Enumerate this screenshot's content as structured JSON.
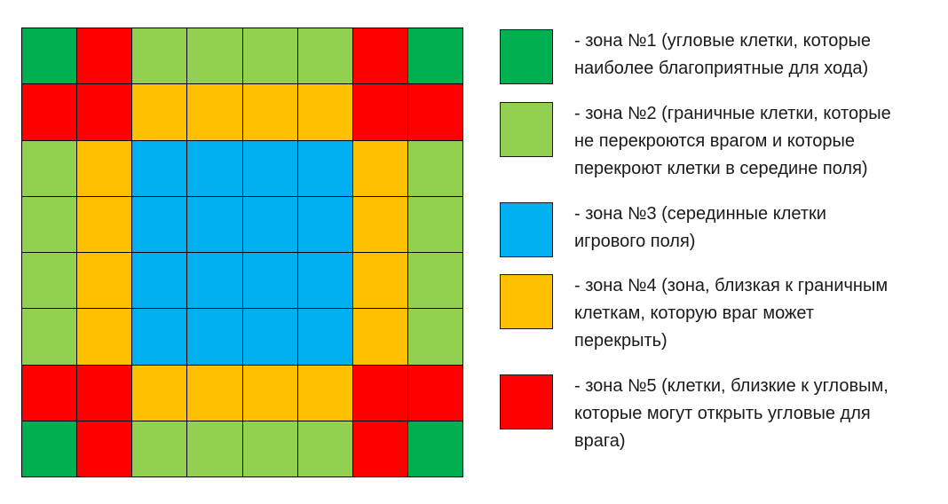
{
  "colors": {
    "zone1": "#00b050",
    "zone2": "#92d050",
    "zone3": "#00b0f0",
    "zone4": "#ffc000",
    "zone5": "#ff0000"
  },
  "board": {
    "rows": [
      [
        1,
        5,
        2,
        2,
        2,
        2,
        5,
        1
      ],
      [
        5,
        5,
        4,
        4,
        4,
        4,
        5,
        5
      ],
      [
        2,
        4,
        3,
        3,
        3,
        3,
        4,
        2
      ],
      [
        2,
        4,
        3,
        3,
        3,
        3,
        4,
        2
      ],
      [
        2,
        4,
        3,
        3,
        3,
        3,
        4,
        2
      ],
      [
        2,
        4,
        3,
        3,
        3,
        3,
        4,
        2
      ],
      [
        5,
        5,
        4,
        4,
        4,
        4,
        5,
        5
      ],
      [
        1,
        5,
        2,
        2,
        2,
        2,
        5,
        1
      ]
    ]
  },
  "legend": {
    "items": [
      {
        "zone": 1,
        "lines": [
          "- зона №1 (угловые клетки, которые",
          "наиболее благоприятные для хода)"
        ]
      },
      {
        "zone": 2,
        "lines": [
          "- зона №2 (граничные клетки, которые",
          "не перекроются врагом и которые",
          "перекроют клетки в середине поля)"
        ]
      },
      {
        "zone": 3,
        "lines": [
          "- зона №3 (серединные клетки",
          "игрового поля)"
        ]
      },
      {
        "zone": 4,
        "lines": [
          "- зона №4 (зона, близкая к граничным",
          "клеткам, которую враг может",
          "перекрыть)"
        ]
      },
      {
        "zone": 5,
        "lines": [
          "- зона №5 (клетки, близкие к угловым,",
          "которые могут открыть угловые для",
          "врага)"
        ]
      }
    ]
  }
}
